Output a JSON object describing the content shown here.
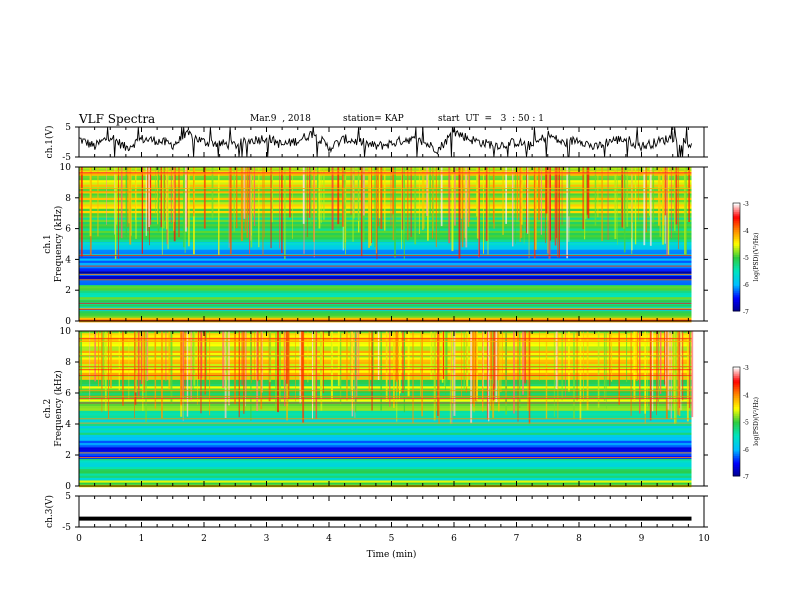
{
  "header": {
    "title": "VLF Spectra",
    "date": "Mar.9  , 2018",
    "station": "station= KAP",
    "start": "start  UT  =   3  : 50 : 1"
  },
  "colors": {
    "colorbar": [
      "#00008b",
      "#0000ff",
      "#00bfff",
      "#00e5c0",
      "#2ecc40",
      "#ffff00",
      "#ff8c00",
      "#ff0000",
      "#ffffff"
    ]
  },
  "chart_data": [
    {
      "type": "line",
      "ylabel": "ch.1(V)",
      "ylim": [
        -5,
        5
      ],
      "yticks": [
        "5",
        "-5"
      ],
      "xlim": [
        0,
        10
      ],
      "x": [
        0,
        0.25,
        0.5,
        0.75,
        1,
        1.25,
        1.5,
        1.75,
        2,
        2.25,
        2.5,
        2.75,
        3,
        3.25,
        3.5,
        3.75,
        4,
        4.25,
        4.5,
        4.75,
        5,
        5.25,
        5.5,
        5.75,
        6,
        6.25,
        6.5,
        6.75,
        7,
        7.25,
        7.5,
        7.75,
        8,
        8.25,
        8.5,
        8.75,
        9,
        9.25,
        9.5,
        9.75
      ],
      "y": [
        1,
        -1.5,
        2,
        -2,
        1,
        0.5,
        -1,
        2.5,
        0,
        -0.5,
        -1,
        0.5,
        1.5,
        -1,
        0.5,
        3,
        -2,
        1,
        0,
        -1.5,
        -0.5,
        1,
        0,
        -2.5,
        3.5,
        1,
        -0.5,
        -1,
        0,
        -1.5,
        2.5,
        -0.5,
        1,
        -2,
        0.5,
        1,
        -1.5,
        0,
        1.5,
        -0.5
      ]
    },
    {
      "type": "heatmap",
      "ylabel": "ch.1\nFrequency  (kHz)",
      "xlim": [
        0,
        10
      ],
      "ylim": [
        0,
        10
      ],
      "yticks": [
        "0",
        "2",
        "4",
        "6",
        "8",
        "10"
      ],
      "colorbar": {
        "label": "log(PSD)(V²/Hz)",
        "range": [
          -7,
          -3
        ],
        "ticks": [
          "-3",
          "-4",
          "-5",
          "-6",
          "-7"
        ]
      },
      "bands_khz": [
        {
          "from": 0,
          "to": 0.5,
          "level": -4.5
        },
        {
          "from": 0.5,
          "to": 1.5,
          "level": -5.3
        },
        {
          "from": 1.5,
          "to": 2.4,
          "level": -5.2
        },
        {
          "from": 2.4,
          "to": 3.5,
          "level": -6.6
        },
        {
          "from": 3.5,
          "to": 5.2,
          "level": -6.0
        },
        {
          "from": 5.2,
          "to": 7.0,
          "level": -5.0
        },
        {
          "from": 7.0,
          "to": 10,
          "level": -4.6
        }
      ]
    },
    {
      "type": "heatmap",
      "ylabel": "ch.2\nFrequency  (kHz)",
      "xlim": [
        0,
        10
      ],
      "ylim": [
        0,
        10
      ],
      "yticks": [
        "0",
        "2",
        "4",
        "6",
        "8",
        "10"
      ],
      "colorbar": {
        "label": "log(PSD)(V²/Hz)",
        "range": [
          -7,
          -3
        ],
        "ticks": [
          "-3",
          "-4",
          "-5",
          "-6",
          "-7"
        ]
      },
      "bands_khz": [
        {
          "from": 0,
          "to": 0.5,
          "level": -4.8
        },
        {
          "from": 0.5,
          "to": 1.8,
          "level": -5.4
        },
        {
          "from": 1.8,
          "to": 3.2,
          "level": -6.3
        },
        {
          "from": 3.2,
          "to": 5.0,
          "level": -5.6
        },
        {
          "from": 5.0,
          "to": 7.0,
          "level": -4.9
        },
        {
          "from": 7.0,
          "to": 10,
          "level": -4.5
        }
      ]
    },
    {
      "type": "line",
      "ylabel": "ch.3(V)",
      "ylim": [
        -5,
        5
      ],
      "yticks": [
        "5",
        "-5"
      ],
      "xlim": [
        0,
        10
      ],
      "x": [
        0,
        9.8
      ],
      "y": [
        -2.3,
        -2.3
      ]
    }
  ],
  "xaxis": {
    "label": "Time  (min)",
    "ticks": [
      "0",
      "1",
      "2",
      "3",
      "4",
      "5",
      "6",
      "7",
      "8",
      "9",
      "10"
    ]
  }
}
